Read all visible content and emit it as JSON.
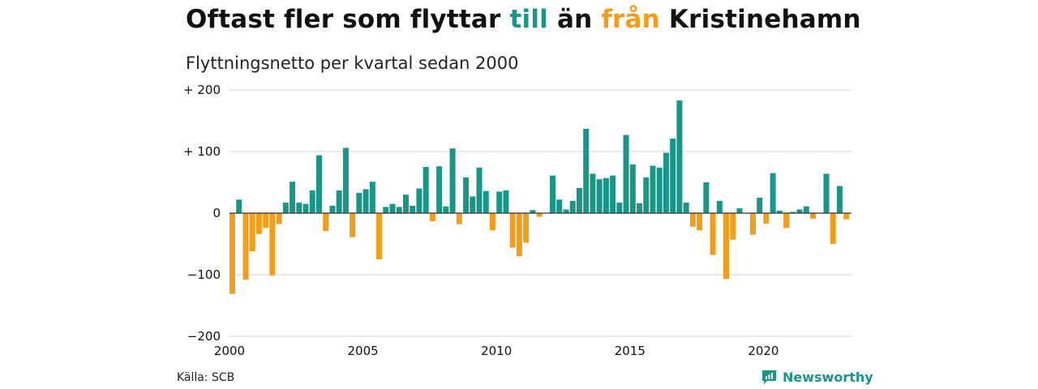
{
  "header": {
    "title_parts": [
      "Oftast fler som flyttar ",
      "till",
      " än ",
      "från",
      " Kristinehamn"
    ],
    "subtitle": "Flyttningsnetto per kvartal sedan 2000"
  },
  "footer": {
    "source": "Källa: SCB",
    "brand": "Newsworthy"
  },
  "colors": {
    "positive": "#1a9688",
    "negative": "#f29e1b",
    "grid": "#dddddd"
  },
  "chart_data": {
    "type": "bar",
    "title": "Oftast fler som flyttar till än från Kristinehamn",
    "subtitle": "Flyttningsnetto per kvartal sedan 2000",
    "xlabel": "",
    "ylabel": "",
    "x_start": "2000 Q1",
    "x_ticks": [
      "2000",
      "2005",
      "2010",
      "2015",
      "2020"
    ],
    "y_ticks": [
      {
        "value": 200,
        "label": "+ 200"
      },
      {
        "value": 100,
        "label": "+ 100"
      },
      {
        "value": 0,
        "label": "0"
      },
      {
        "value": -100,
        "label": "−100"
      },
      {
        "value": -200,
        "label": "−200"
      }
    ],
    "ylim": [
      -200,
      200
    ],
    "grid": true,
    "series": [
      {
        "values": [
          -131,
          22,
          -108,
          -62,
          -34,
          -24,
          -101,
          -18,
          17,
          51,
          17,
          15,
          37,
          94,
          -29,
          12,
          37,
          106,
          -39,
          33,
          39,
          51,
          -75,
          10,
          15,
          10,
          30,
          12,
          40,
          75,
          -13,
          76,
          11,
          105,
          -18,
          58,
          27,
          74,
          36,
          -28,
          35,
          37,
          -56,
          -70,
          -48,
          5,
          -6,
          0,
          61,
          22,
          6,
          20,
          41,
          137,
          64,
          55,
          57,
          61,
          17,
          127,
          79,
          16,
          58,
          77,
          74,
          98,
          121,
          183,
          17,
          -22,
          -28,
          50,
          -68,
          20,
          -107,
          -43,
          8,
          0,
          -35,
          25,
          -17,
          65,
          4,
          -24,
          2,
          6,
          11,
          -9,
          0,
          64,
          -50,
          44,
          -10
        ]
      }
    ]
  }
}
